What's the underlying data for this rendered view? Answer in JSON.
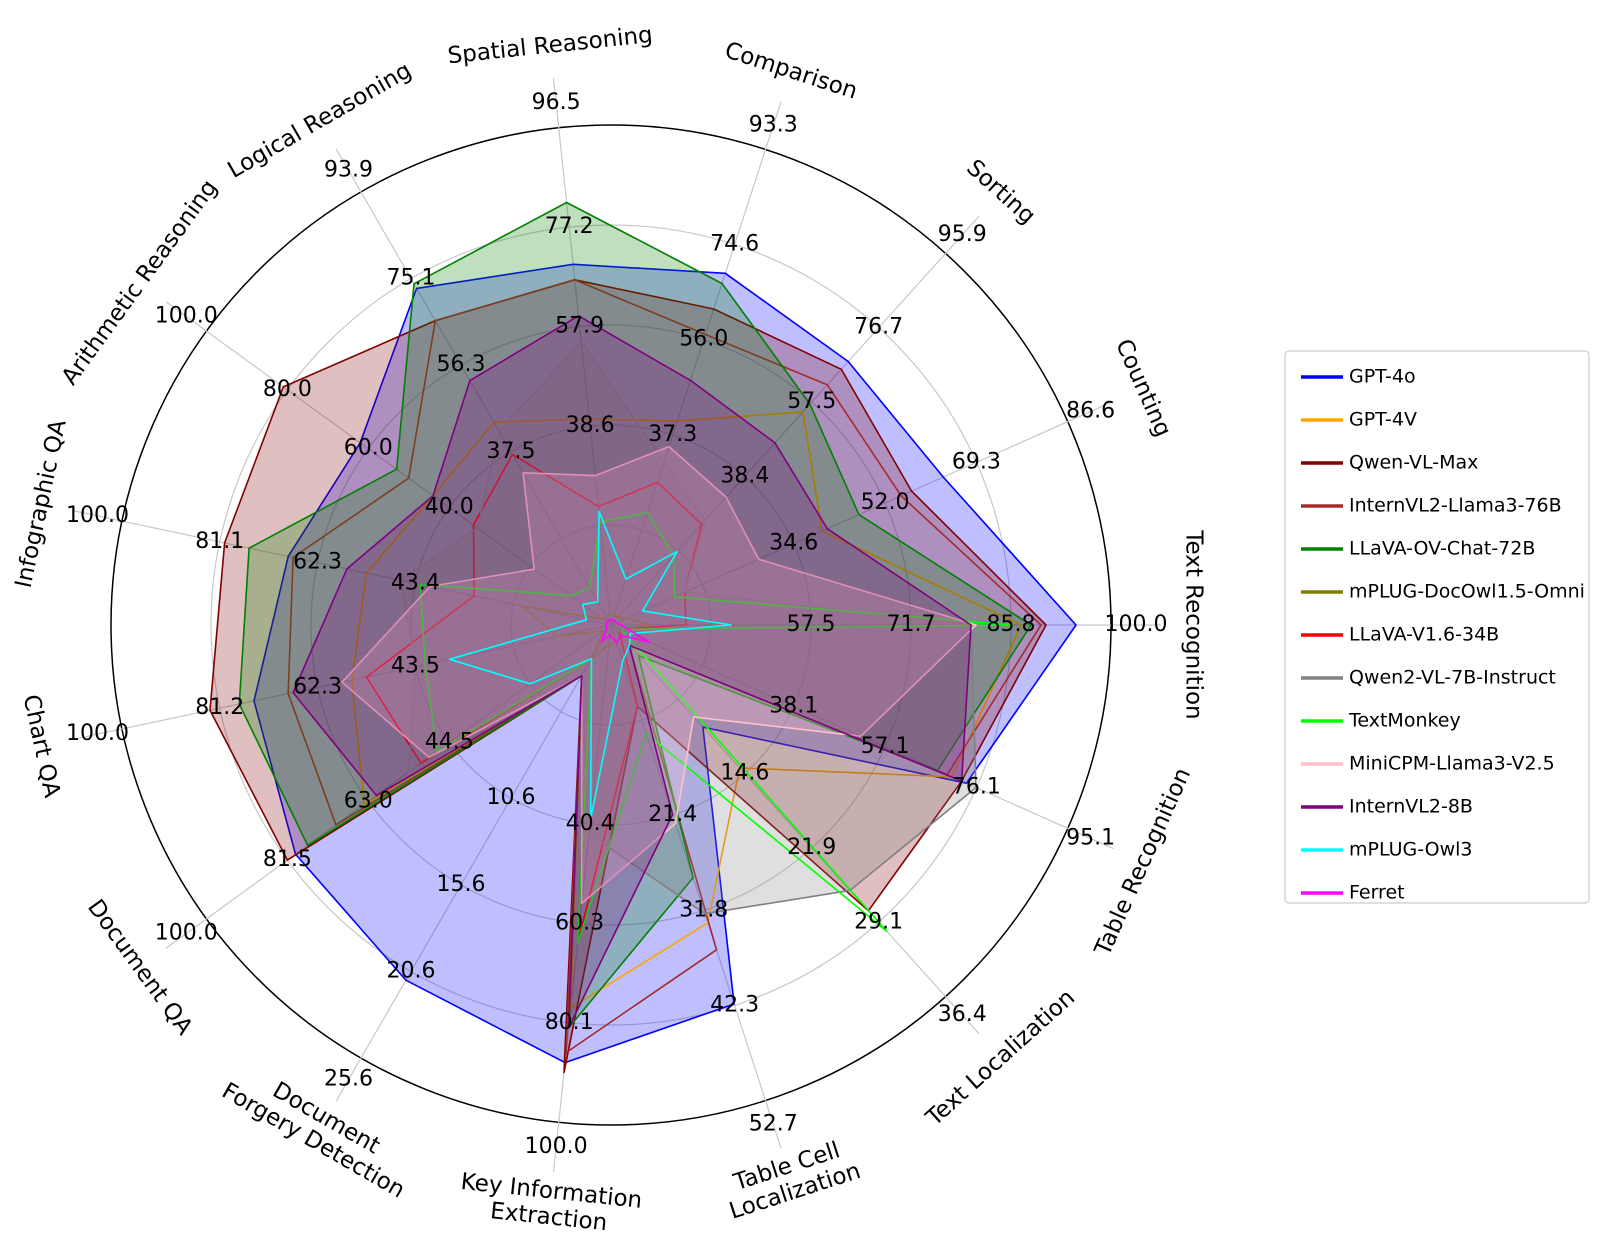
{
  "chart_data": {
    "type": "radar",
    "title": "",
    "legend_position": "right",
    "grid": true,
    "axes": [
      {
        "label": "Text Recognition",
        "max": 100.0,
        "ticks": [
          "57.5",
          "71.7",
          "85.8",
          "100.0"
        ]
      },
      {
        "label": "Counting",
        "max": 86.6,
        "ticks": [
          "34.6",
          "52.0",
          "69.3",
          "86.6"
        ]
      },
      {
        "label": "Sorting",
        "max": 95.9,
        "ticks": [
          "38.4",
          "57.5",
          "76.7",
          "95.9"
        ]
      },
      {
        "label": "Comparison",
        "max": 93.3,
        "ticks": [
          "37.3",
          "56.0",
          "74.6",
          "93.3"
        ]
      },
      {
        "label": "Spatial Reasoning",
        "max": 96.5,
        "ticks": [
          "38.6",
          "57.9",
          "77.2",
          "96.5"
        ]
      },
      {
        "label": "Logical Reasoning",
        "max": 93.9,
        "ticks": [
          "37.5",
          "56.3",
          "75.1",
          "93.9"
        ]
      },
      {
        "label": "Arithmetic Reasoning",
        "max": 100.0,
        "ticks": [
          "40.0",
          "60.0",
          "80.0",
          "100.0"
        ]
      },
      {
        "label": "Infographic QA",
        "max": 100.0,
        "ticks": [
          "43.4",
          "62.3",
          "81.1",
          "100.0"
        ]
      },
      {
        "label": "Chart QA",
        "max": 100.0,
        "ticks": [
          "43.5",
          "62.3",
          "81.2",
          "100.0"
        ]
      },
      {
        "label": "Document QA",
        "max": 100.0,
        "ticks": [
          "44.5",
          "63.0",
          "81.5",
          "100.0"
        ]
      },
      {
        "label": "Document\nForgery Detection",
        "max": 25.6,
        "ticks": [
          "10.6",
          "15.6",
          "20.6",
          "25.6"
        ]
      },
      {
        "label": "Key Information\nExtraction",
        "max": 100.0,
        "ticks": [
          "40.4",
          "60.3",
          "80.1",
          "100.0"
        ]
      },
      {
        "label": "Table Cell\nLocalization",
        "max": 52.7,
        "ticks": [
          "21.4",
          "31.8",
          "42.3",
          "52.7"
        ]
      },
      {
        "label": "Text Localization",
        "max": 36.4,
        "ticks": [
          "14.6",
          "21.9",
          "29.1",
          "36.4"
        ]
      },
      {
        "label": "Table Recognition",
        "max": 95.1,
        "ticks": [
          "38.1",
          "57.1",
          "76.1",
          "95.1"
        ]
      }
    ],
    "series": [
      {
        "name": "GPT-4o",
        "color": "#0000ff",
        "fill": true,
        "values": [
          93,
          63,
          68,
          69,
          70,
          73,
          62,
          66,
          73,
          78,
          21,
          88,
          42,
          10,
          74
        ]
      },
      {
        "name": "GPT-4V",
        "color": "#ffa500",
        "fill": false,
        "values": [
          82,
          40,
          55,
          40,
          40,
          44,
          44,
          50,
          53,
          61,
          3,
          77,
          33,
          14,
          71
        ]
      },
      {
        "name": "Qwen-VL-Max",
        "color": "#800000",
        "fill": true,
        "values": [
          87,
          57,
          66,
          62,
          67,
          66,
          81,
          79,
          82,
          80,
          3,
          90,
          9,
          28,
          73
        ]
      },
      {
        "name": "InternVL2-Llama3-76B",
        "color": "#a52a2a",
        "fill": false,
        "values": [
          86,
          55,
          62,
          57,
          67,
          66,
          50,
          65,
          66,
          68,
          3,
          86,
          36,
          2,
          70
        ]
      },
      {
        "name": "LLaVA-OV-Chat-72B",
        "color": "#008000",
        "fill": true,
        "values": [
          84,
          47,
          57,
          67,
          82,
          74,
          53,
          74,
          76,
          75,
          3,
          81,
          28,
          3,
          68
        ]
      },
      {
        "name": "mPLUG-DocOwl1.5-Omni",
        "color": "#808000",
        "fill": false,
        "values": [
          8,
          3,
          2,
          2,
          2,
          2,
          2,
          18,
          11,
          2,
          2,
          4,
          2,
          1,
          2
        ]
      },
      {
        "name": "LLaVA-V1.6-34B",
        "color": "#ff0000",
        "fill": false,
        "values": [
          15,
          14,
          26,
          28,
          23,
          37,
          34,
          28,
          50,
          47,
          2,
          64,
          9,
          1,
          2
        ]
      },
      {
        "name": "Qwen2-VL-7B-Instruct",
        "color": "#808080",
        "fill": true,
        "values": [
          72,
          14,
          27,
          32,
          55,
          42,
          33,
          43,
          40,
          50,
          3,
          42,
          32,
          26,
          76
        ]
      },
      {
        "name": "TextMonkey",
        "color": "#00ff00",
        "fill": false,
        "values": [
          80,
          12,
          18,
          22,
          20,
          8,
          10,
          39,
          38,
          43,
          2,
          64,
          12,
          30,
          2
        ]
      },
      {
        "name": "MiniCPM-Llama3-V2.5",
        "color": "#ffc0cb",
        "fill": true,
        "values": [
          73,
          28,
          33,
          35,
          29,
          33,
          19,
          37,
          55,
          45,
          3,
          56,
          22,
          9,
          52
        ]
      },
      {
        "name": "InternVL2-8B",
        "color": "#800080",
        "fill": true,
        "values": [
          72,
          41,
          47,
          48,
          60,
          53,
          44,
          54,
          65,
          58,
          3,
          81,
          21,
          2,
          73
        ]
      },
      {
        "name": "mPLUG-Owl3",
        "color": "#00ffff",
        "fill": false,
        "values": [
          24,
          6,
          19,
          9,
          22,
          5,
          7,
          5,
          33,
          20,
          2,
          39,
          4,
          2,
          4
        ]
      },
      {
        "name": "Ferret",
        "color": "#ff00ff",
        "fill": false,
        "values": [
          2,
          1,
          1,
          1,
          1,
          1,
          1,
          1,
          1,
          1,
          1,
          2,
          2,
          1,
          8
        ]
      }
    ]
  }
}
